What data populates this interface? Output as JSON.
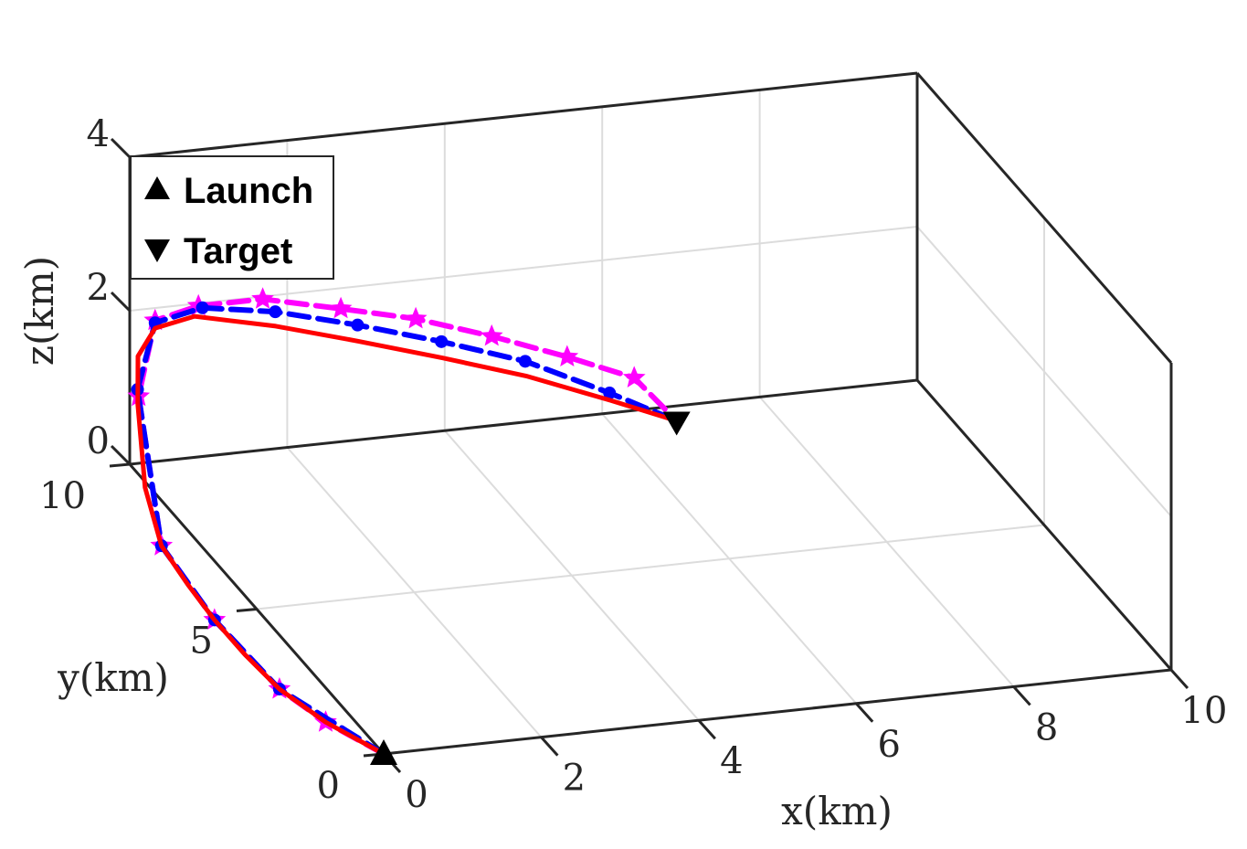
{
  "chart_data": {
    "type": "line3d",
    "xlabel": "x(km)",
    "ylabel": "y(km)",
    "zlabel": "z(km)",
    "xlim": [
      0,
      10
    ],
    "ylim": [
      0,
      10
    ],
    "zlim": [
      0,
      4
    ],
    "xticks": [
      "0",
      "2",
      "4",
      "6",
      "8",
      "10"
    ],
    "yticks": [
      "0",
      "5",
      "10"
    ],
    "zticks": [
      "0",
      "2",
      "4"
    ],
    "grid": true,
    "legend": {
      "position": "top-left",
      "entries": [
        {
          "label": "Launch",
          "marker": "triangle-up",
          "color": "#000000"
        },
        {
          "label": "Target",
          "marker": "triangle-down",
          "color": "#000000"
        }
      ]
    },
    "launch": {
      "x": 0,
      "y": 0,
      "z": 0
    },
    "target": {
      "x": 6.3,
      "y": 8.0,
      "z": 0.63
    },
    "series": [
      {
        "style": "solid",
        "color": "#ff0000",
        "marker": "none",
        "points": [
          [
            0,
            0,
            0
          ],
          [
            -0.35,
            1.2,
            0
          ],
          [
            -0.55,
            2.4,
            0
          ],
          [
            -0.6,
            3.6,
            0
          ],
          [
            -0.6,
            4.8,
            0
          ],
          [
            -0.55,
            6.0,
            0
          ],
          [
            -0.5,
            7.2,
            0.05
          ],
          [
            -0.45,
            8.0,
            0.5
          ],
          [
            -0.35,
            8.6,
            1.35
          ],
          [
            -0.25,
            8.9,
            1.85
          ],
          [
            0,
            9.0,
            2.15
          ],
          [
            0.5,
            9.0,
            2.25
          ],
          [
            1.5,
            8.9,
            2.05
          ],
          [
            2.5,
            8.75,
            1.8
          ],
          [
            3.5,
            8.55,
            1.55
          ],
          [
            4.5,
            8.35,
            1.28
          ],
          [
            5.5,
            8.15,
            0.93
          ],
          [
            6.3,
            8.0,
            0.63
          ]
        ]
      },
      {
        "style": "dashed",
        "color": "#0000ff",
        "marker": "circle",
        "points": [
          [
            0,
            0,
            0
          ],
          [
            -0.55,
            2.4,
            0
          ],
          [
            -0.6,
            4.8,
            0
          ],
          [
            -0.5,
            7.2,
            0.05
          ],
          [
            -0.32,
            8.7,
            1.5
          ],
          [
            0,
            9.0,
            2.22
          ],
          [
            0.6,
            9.0,
            2.35
          ],
          [
            1.5,
            8.92,
            2.23
          ],
          [
            2.5,
            8.78,
            2.0
          ],
          [
            3.5,
            8.58,
            1.75
          ],
          [
            4.5,
            8.38,
            1.46
          ],
          [
            5.5,
            8.16,
            1.02
          ],
          [
            6.3,
            8.0,
            0.63
          ]
        ]
      },
      {
        "style": "dashed",
        "color": "#ff00ff",
        "marker": "star",
        "points": [
          [
            0,
            0,
            0
          ],
          [
            -0.35,
            1.2,
            0
          ],
          [
            -0.55,
            2.4,
            0
          ],
          [
            -0.6,
            4.8,
            0
          ],
          [
            -0.5,
            7.2,
            0.05
          ],
          [
            -0.3,
            8.72,
            1.4
          ],
          [
            0,
            9.0,
            2.25
          ],
          [
            0.55,
            9.0,
            2.38
          ],
          [
            1.35,
            8.95,
            2.4
          ],
          [
            2.3,
            8.82,
            2.22
          ],
          [
            3.2,
            8.66,
            2.05
          ],
          [
            4.1,
            8.46,
            1.8
          ],
          [
            5.0,
            8.28,
            1.5
          ],
          [
            5.8,
            8.12,
            1.2
          ],
          [
            6.3,
            8.0,
            0.63
          ]
        ]
      }
    ]
  }
}
